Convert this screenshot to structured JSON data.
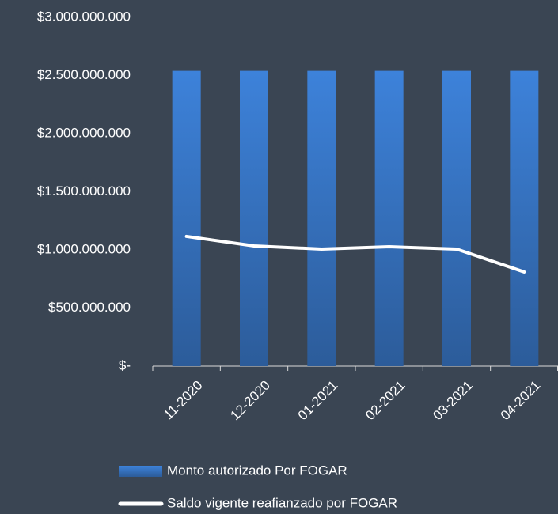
{
  "chart_data": {
    "type": "bar",
    "categories": [
      "11-2020",
      "12-2020",
      "01-2021",
      "02-2021",
      "03-2021",
      "04-2021"
    ],
    "series": [
      {
        "name": "Monto autorizado Por FOGAR",
        "type": "bar",
        "color": "#3778cc",
        "values": [
          2540000000,
          2540000000,
          2540000000,
          2540000000,
          2540000000,
          2540000000
        ]
      },
      {
        "name": "Saldo vigente reafianzado por FOGAR",
        "type": "line",
        "color": "#ffffff",
        "values": [
          1116000000,
          1034000000,
          1007000000,
          1027000000,
          1007000000,
          810000000
        ]
      }
    ],
    "ylim": [
      0,
      3000000000
    ],
    "yticks": [
      {
        "value": 0,
        "label": "$-"
      },
      {
        "value": 500000000,
        "label": "$500.000.000"
      },
      {
        "value": 1000000000,
        "label": "$1.000.000.000"
      },
      {
        "value": 1500000000,
        "label": "$1.500.000.000"
      },
      {
        "value": 2000000000,
        "label": "$2.000.000.000"
      },
      {
        "value": 2500000000,
        "label": "$2.500.000.000"
      },
      {
        "value": 3000000000,
        "label": "$3.000.000.000"
      }
    ],
    "grid": false,
    "legend": "bottom"
  }
}
